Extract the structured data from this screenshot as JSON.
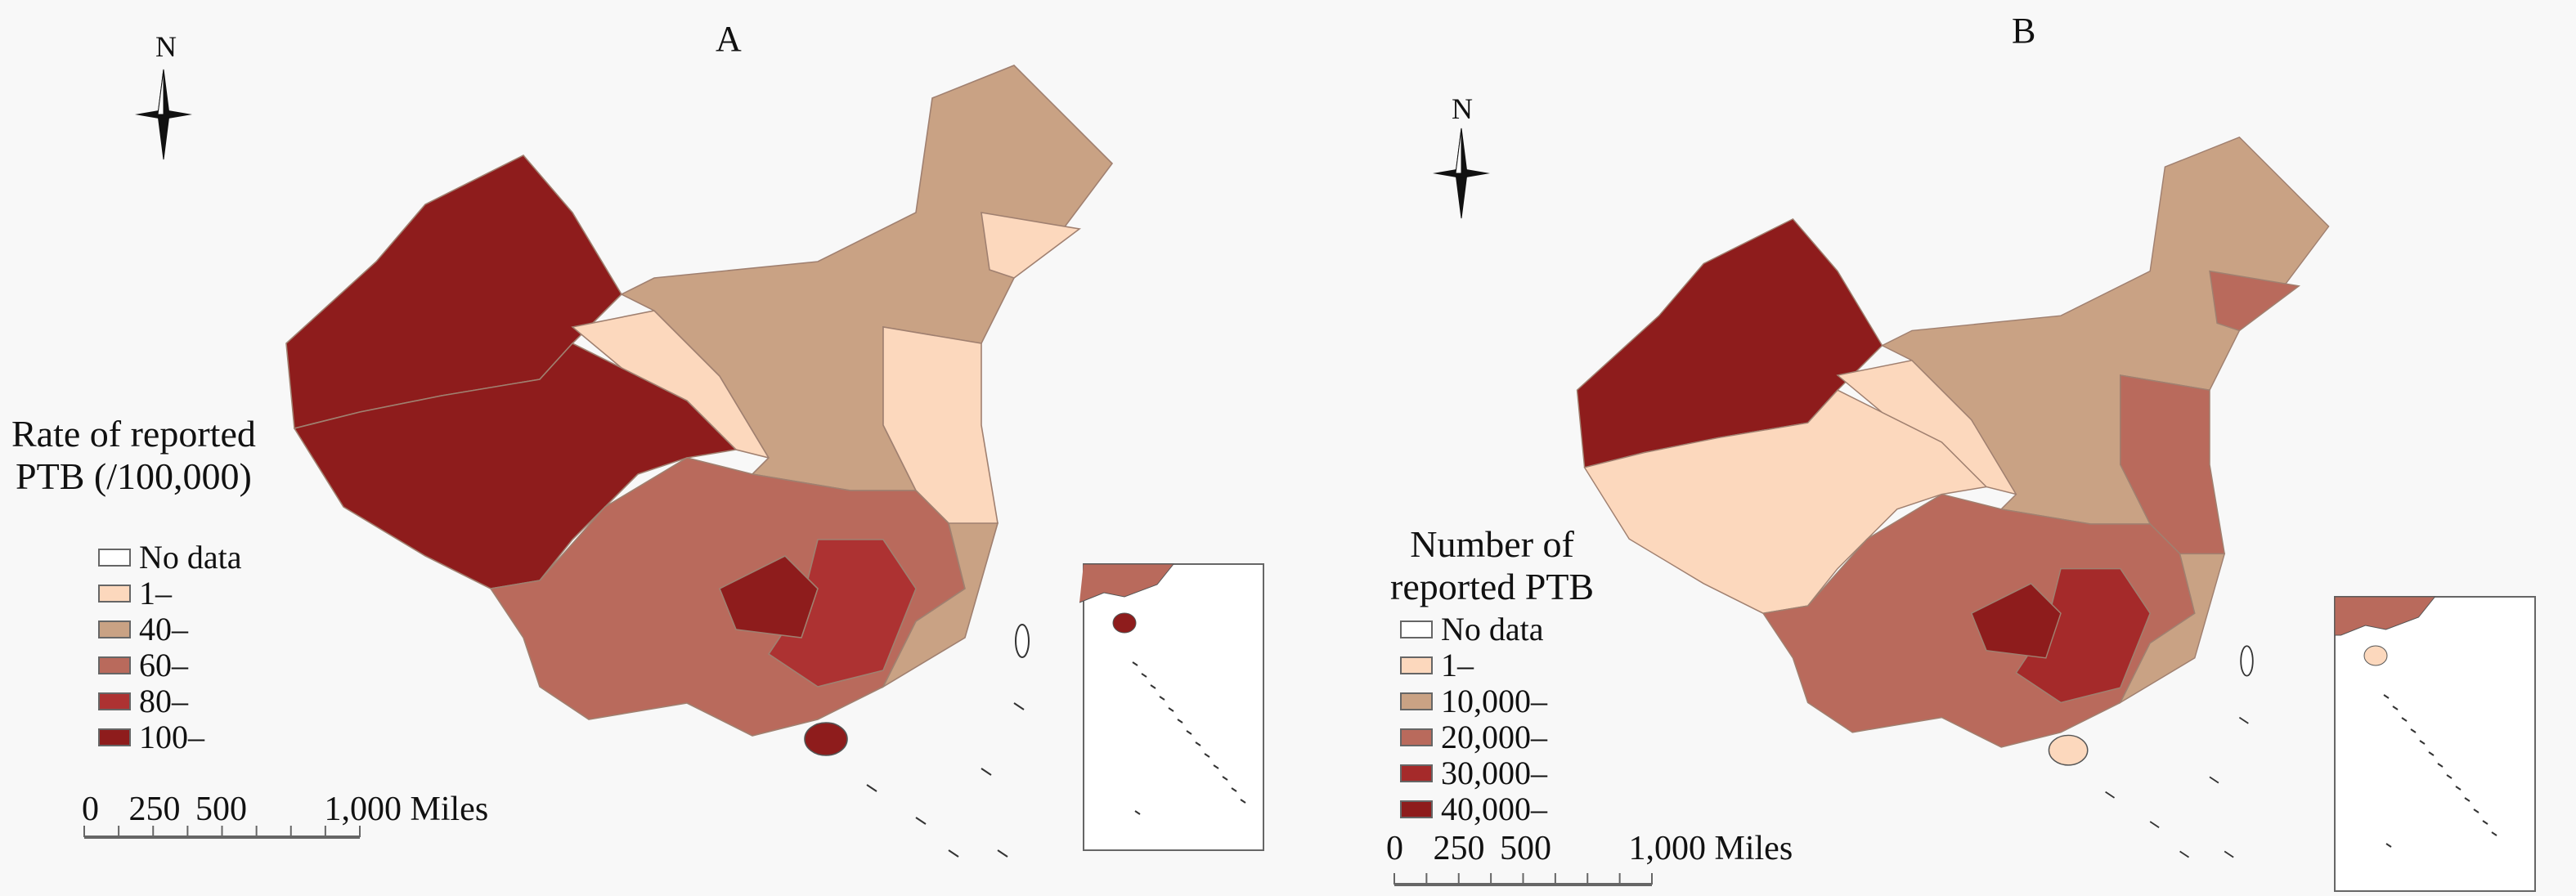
{
  "panels": [
    {
      "label": "A",
      "north_label": "N",
      "legend": {
        "title_line1": "Rate of reported",
        "title_line2": "PTB (/100,000)",
        "items": [
          {
            "label": "No data",
            "color": "#ffffff"
          },
          {
            "label": "1–",
            "color": "#fcd8bd"
          },
          {
            "label": "40–",
            "color": "#c9a284"
          },
          {
            "label": "60–",
            "color": "#b96a5c"
          },
          {
            "label": "80–",
            "color": "#ad3232"
          },
          {
            "label": "100–",
            "color": "#8e1c1c"
          }
        ]
      },
      "scale": {
        "ticks": [
          "0",
          "250",
          "500",
          "1,000 Miles"
        ]
      }
    },
    {
      "label": "B",
      "north_label": "N",
      "legend": {
        "title_line1": "Number of",
        "title_line2": "reported PTB",
        "items": [
          {
            "label": "No data",
            "color": "#ffffff"
          },
          {
            "label": "1–",
            "color": "#fcd8bd"
          },
          {
            "label": "10,000–",
            "color": "#c9a284"
          },
          {
            "label": "20,000–",
            "color": "#b96a5c"
          },
          {
            "label": "30,000–",
            "color": "#a52a2a"
          },
          {
            "label": "40,000–",
            "color": "#8e1c1c"
          }
        ]
      },
      "scale": {
        "ticks": [
          "0",
          "250",
          "500",
          "1,000 Miles"
        ]
      }
    }
  ]
}
